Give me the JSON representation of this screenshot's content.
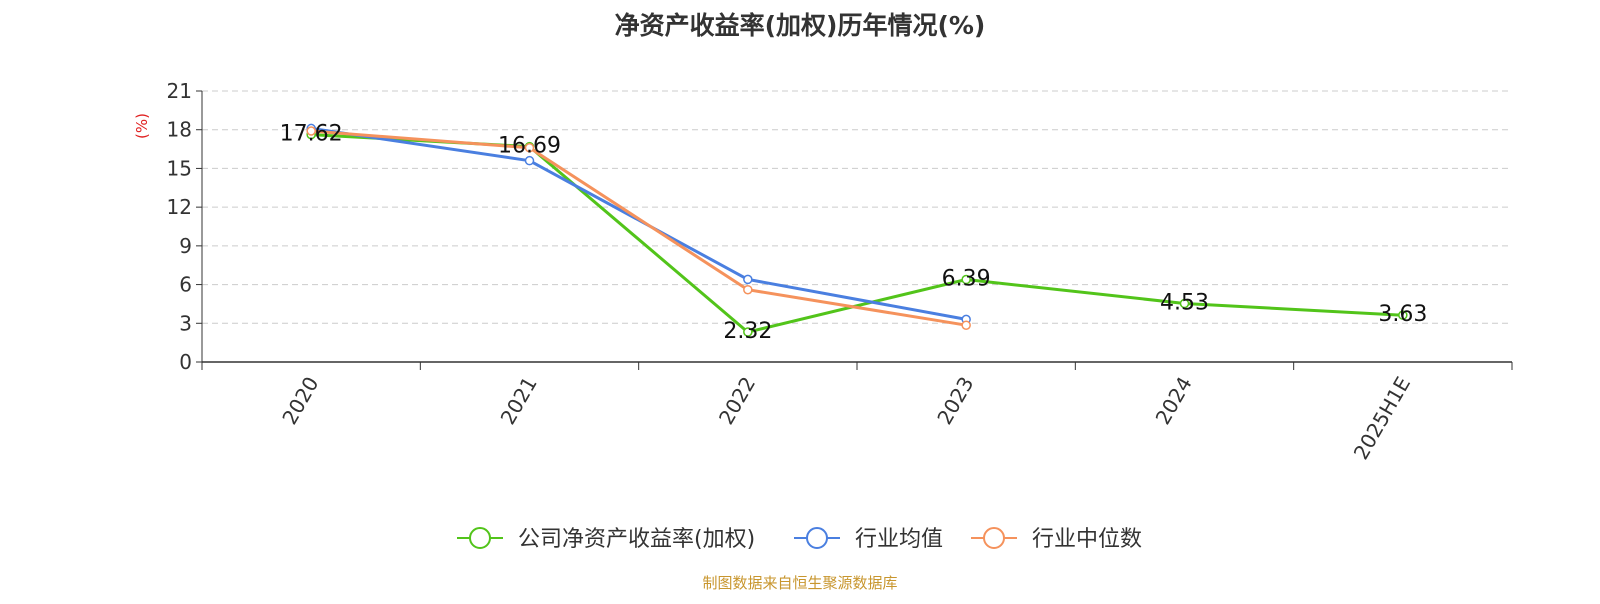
{
  "chart_data": {
    "type": "line",
    "title": "净资产收益率(加权)历年情况(%)",
    "ylabel": "(%)",
    "categories": [
      "2020",
      "2021",
      "2022",
      "2023",
      "2024",
      "2025H1E"
    ],
    "ylim": [
      0,
      21
    ],
    "yticks": [
      0,
      3,
      6,
      9,
      12,
      15,
      18,
      21
    ],
    "grid": true,
    "legend_position": "bottom",
    "series": [
      {
        "name": "公司净资产收益率(加权)",
        "color": "#52c41a",
        "values": [
          17.62,
          16.69,
          2.32,
          6.39,
          4.53,
          3.63
        ],
        "labels": [
          "17.62",
          "16.69",
          "2.32",
          "6.39",
          "4.53",
          "3.63"
        ]
      },
      {
        "name": "行业均值",
        "color": "#4a7fe0",
        "values": [
          18.1,
          15.6,
          6.4,
          3.3,
          null,
          null
        ],
        "labels": []
      },
      {
        "name": "行业中位数",
        "color": "#f5925c",
        "values": [
          17.9,
          16.6,
          5.6,
          2.85,
          null,
          null
        ],
        "labels": []
      }
    ],
    "source": "制图数据来自恒生聚源数据库",
    "source_color": "#c8962e"
  }
}
